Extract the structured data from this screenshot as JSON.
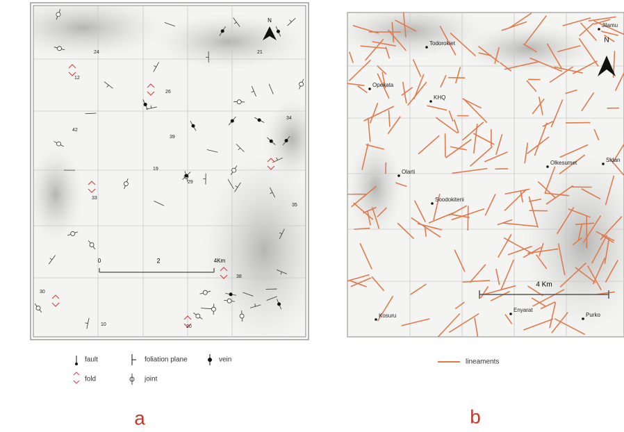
{
  "panel_a": {
    "label": "a",
    "north": "N",
    "scale": {
      "start": "0",
      "mid": "2",
      "end": "4Km"
    },
    "dips": [
      "21",
      "24",
      "12",
      "26",
      "34",
      "42",
      "39",
      "19",
      "29",
      "33",
      "35",
      "38",
      "30",
      "20",
      "10"
    ],
    "legend": [
      "fault",
      "foliation plane",
      "vein",
      "fold",
      "joint"
    ]
  },
  "panel_b": {
    "label": "b",
    "north": "N",
    "scale": "4 Km",
    "places": [
      "Jilamu",
      "Todorokiet",
      "Opekata",
      "KHQ",
      "Olkesumet",
      "Sidan",
      "Olarti",
      "Soodokiteni",
      "Kosuru",
      "Enyarat",
      "Purko"
    ],
    "legend": "lineaments"
  }
}
